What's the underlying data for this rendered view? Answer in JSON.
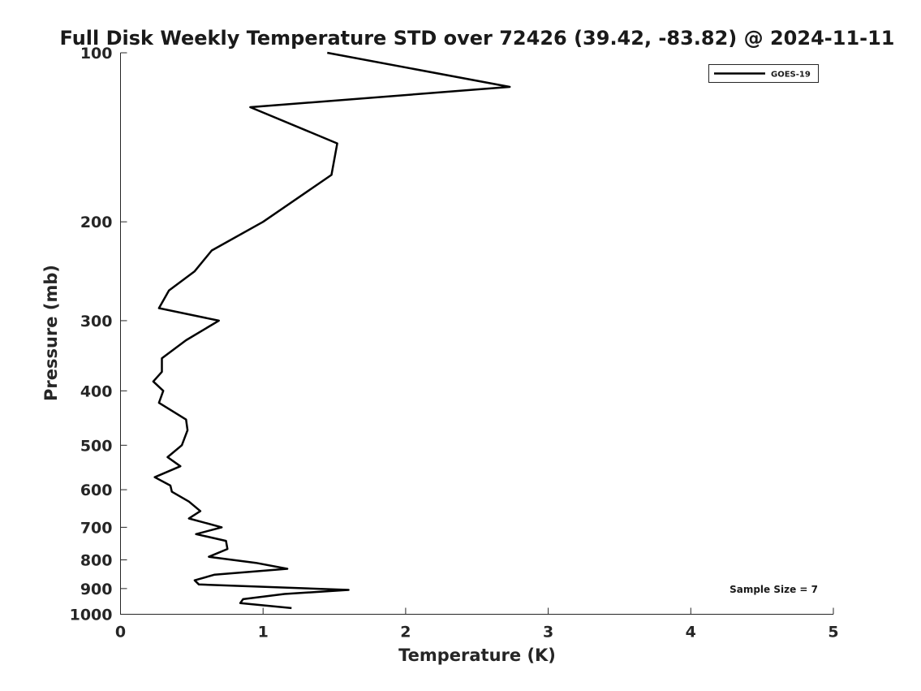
{
  "chart_data": {
    "type": "line",
    "title": "Full Disk Weekly Temperature STD over 72426 (39.42, -83.82) @ 2024-11-11",
    "xlabel": "Temperature (K)",
    "ylabel": "Pressure (mb)",
    "xlim": [
      0,
      5
    ],
    "ylim": [
      100,
      1000
    ],
    "y_scale": "log",
    "y_reversed": true,
    "x_ticks": [
      0,
      1,
      2,
      3,
      4,
      5
    ],
    "y_ticks": [
      100,
      200,
      300,
      400,
      500,
      600,
      700,
      800,
      900,
      1000
    ],
    "grid": false,
    "legend_position": "top-right",
    "annotation": "Sample Size = 7",
    "series": [
      {
        "name": "GOES-19",
        "color": "#000000",
        "x": [
          1.45,
          2.73,
          0.91,
          1.52,
          1.48,
          1.0,
          0.64,
          0.52,
          0.34,
          0.27,
          0.69,
          0.46,
          0.29,
          0.29,
          0.23,
          0.3,
          0.27,
          0.46,
          0.47,
          0.43,
          0.33,
          0.42,
          0.24,
          0.35,
          0.36,
          0.48,
          0.56,
          0.48,
          0.71,
          0.53,
          0.74,
          0.75,
          0.62,
          0.95,
          1.17,
          0.66,
          0.52,
          0.55,
          1.6,
          1.15,
          0.86,
          0.84,
          1.2
        ],
        "y": [
          100,
          115,
          125,
          145,
          165,
          200,
          225,
          245,
          265,
          285,
          300,
          325,
          350,
          370,
          385,
          400,
          420,
          450,
          470,
          500,
          525,
          545,
          570,
          590,
          605,
          630,
          655,
          675,
          700,
          720,
          740,
          765,
          790,
          810,
          830,
          850,
          870,
          885,
          905,
          920,
          940,
          955,
          975
        ]
      }
    ]
  }
}
